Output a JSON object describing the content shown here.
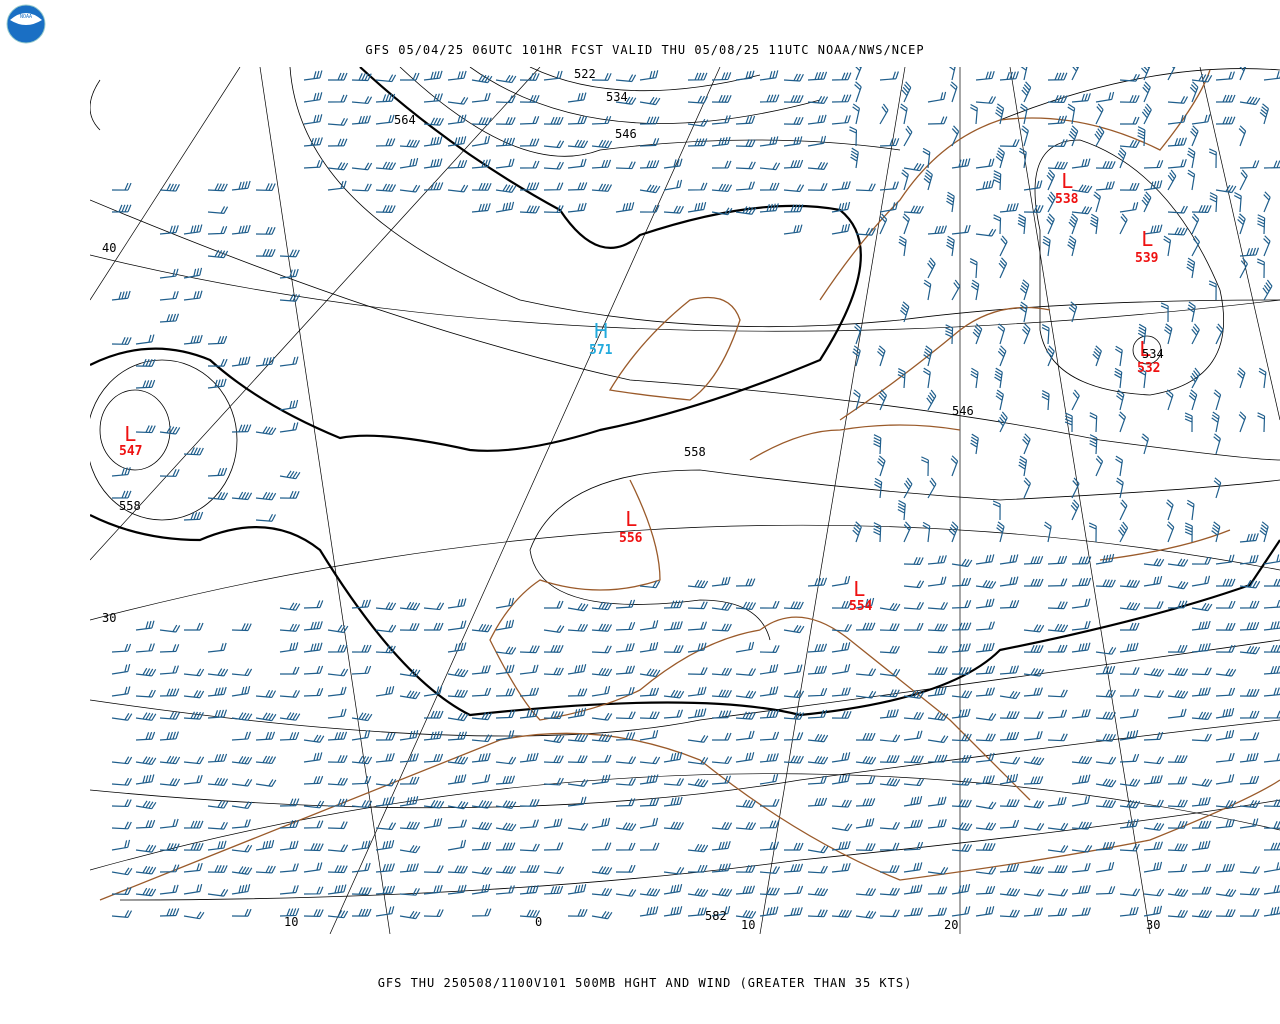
{
  "header": {
    "title": "GFS 05/04/25 06UTC 101HR FCST VALID THU 05/08/25 11UTC NOAA/NWS/NCEP"
  },
  "pressure_centers": [
    {
      "symbol": "L",
      "value": "538"
    },
    {
      "symbol": "L",
      "value": "539"
    },
    {
      "symbol": "L",
      "value": "532"
    },
    {
      "symbol": "H",
      "value": "571"
    },
    {
      "symbol": "L",
      "value": "547"
    },
    {
      "symbol": "L",
      "value": "556"
    },
    {
      "symbol": "L",
      "value": "554"
    }
  ],
  "contour_labels": [
    "522",
    "534",
    "546",
    "564",
    "558",
    "546",
    "534",
    "558",
    "582"
  ],
  "latitude_labels": [
    "40",
    "30"
  ],
  "longitude_labels": [
    "10",
    "0",
    "10",
    "20",
    "30"
  ],
  "footer": "GFS THU 250508/1100V101 500MB HGHT AND WIND (GREATER THAN 35 KTS)"
}
